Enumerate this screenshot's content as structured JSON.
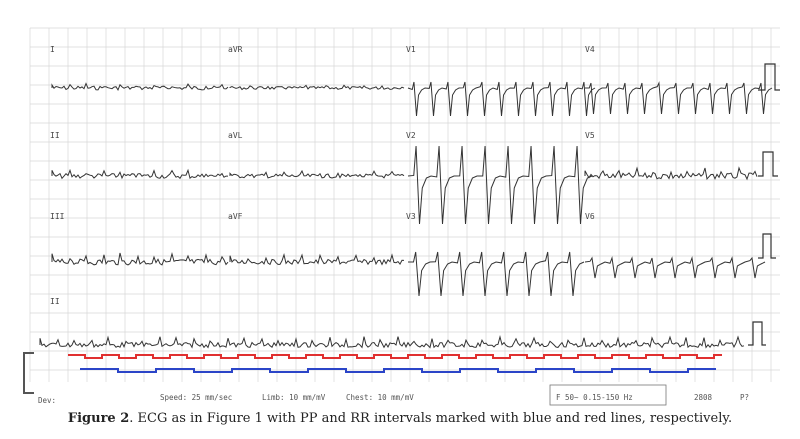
{
  "figure": {
    "caption_label": "Figure 2",
    "caption_text": ". ECG as in Figure 1 with PP and RR intervals marked with blue and red lines, respectively."
  },
  "leads": {
    "r1": [
      "I",
      "aVR",
      "V1",
      "V4"
    ],
    "r2": [
      "II",
      "aVL",
      "V2",
      "V5"
    ],
    "r3": [
      "III",
      "aVF",
      "V3",
      "V6"
    ],
    "r4": [
      "II"
    ]
  },
  "footer": {
    "dev": "Dev:",
    "speed": "Speed: 25 mm/sec",
    "limb": "Limb: 10 mm/mV",
    "chest": "Chest: 10 mm/mV",
    "filter": "F 50~ 0.15-150 Hz",
    "code": "2808",
    "page": "P?"
  },
  "colors": {
    "pp_line": "#2b45c8",
    "rr_line": "#e03030",
    "grid": "#d8d8d8",
    "trace": "#333333"
  }
}
